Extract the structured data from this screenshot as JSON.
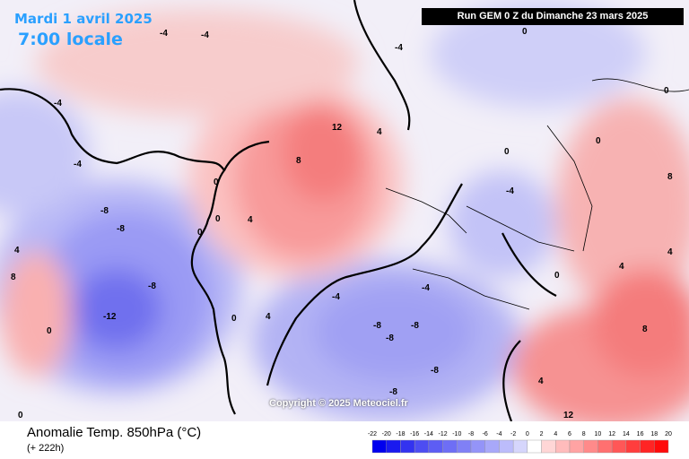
{
  "header": {
    "date": "Mardi 1 avril 2025",
    "time": "7:00 locale",
    "run": "Run GEM 0 Z du Dimanche 23 mars 2025"
  },
  "footer": {
    "variable": "Anomalie Temp. 850hPa (°C)",
    "lead": "(+ 222h)",
    "copyright": "Copyright © 2025 Meteociel.fr"
  },
  "legend": {
    "ticks": [
      "-22",
      "-20",
      "-18",
      "-16",
      "-14",
      "-12",
      "-10",
      "-8",
      "-6",
      "-4",
      "-2",
      "0",
      "2",
      "4",
      "6",
      "8",
      "10",
      "12",
      "14",
      "16",
      "18",
      "20"
    ],
    "colors": [
      "#0000ee",
      "#1a1aef",
      "#3333f0",
      "#4d4df2",
      "#5d5df4",
      "#6e6ef5",
      "#8080f6",
      "#9494f8",
      "#a8a8f9",
      "#bcbcfb",
      "#d6d6fc",
      "#ffffff",
      "#ffd6d6",
      "#ffbcbc",
      "#ffa3a3",
      "#ff8a8a",
      "#ff7070",
      "#ff5757",
      "#ff3d3d",
      "#ff2424",
      "#ff0a0a"
    ]
  },
  "colors": {
    "title_blue": "#2aa0ff",
    "warm": "#f87676",
    "cold": "#6e6ef5"
  },
  "map_labels": [
    "-12",
    "-8",
    "-8",
    "-8",
    "-4",
    "-4",
    "-4",
    "-4",
    "0",
    "0",
    "0",
    "0",
    "0",
    "4",
    "4",
    "4",
    "8",
    "12",
    "8",
    "4",
    "0",
    "-4",
    "-4",
    "0",
    "-4",
    "-8",
    "-8",
    "-8",
    "-8",
    "-8",
    "-4",
    "0",
    "0",
    "0",
    "4",
    "8",
    "4",
    "0",
    "12",
    "8",
    "4"
  ]
}
